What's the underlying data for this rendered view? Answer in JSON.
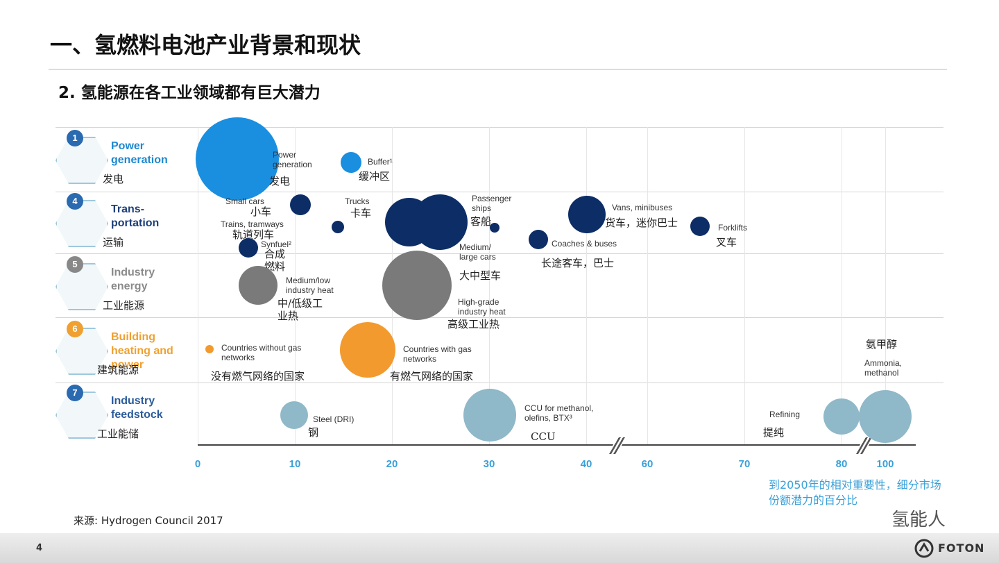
{
  "header": {
    "title": "一、氢燃料电池产业背景和现状",
    "subtitle": "2. 氢能源在各工业领域都有巨大潜力"
  },
  "footer": {
    "source": "来源: Hydrogen Council 2017",
    "page": "4",
    "watermark": "氢能人",
    "logo": "FOTON"
  },
  "chart_data": {
    "type": "bubble",
    "note": "到2050年的相对重要性，细分市场份额潜力的百分比",
    "xlim": [
      0,
      100
    ],
    "xticks": [
      0,
      10,
      20,
      30,
      40,
      60,
      70,
      80,
      100
    ],
    "grid": true,
    "series": [
      {
        "number": "1",
        "name": "Power generation",
        "name_zh": "发电",
        "color": "#1a8fe0",
        "label_color": "#1e88d0",
        "x": [
          4.1,
          15.8
        ],
        "sizes": [
          60,
          15
        ],
        "labels": [
          "Power generation",
          "Buffer¹"
        ],
        "labels_zh": [
          "发电",
          "缓冲区"
        ]
      },
      {
        "number": "4",
        "name": "Trans- portation",
        "name_zh": "运输",
        "color": "#0d2d66",
        "label_color": "#1d3e7a",
        "x": [
          10.6,
          14.4,
          5.2,
          21.8,
          30.6,
          24.9,
          35.1,
          40.2,
          65.4
        ],
        "sizes": [
          15,
          9,
          14,
          35,
          7,
          40,
          14,
          27,
          14
        ],
        "labels": [
          "Small cars",
          "Trains, tramways",
          "Synfuel²",
          "Trucks",
          "Passenger ships",
          "Medium/ large cars",
          "Coaches & buses",
          "Vans, minibuses",
          "Forklifts"
        ],
        "labels_zh": [
          "小车",
          "轨道列车",
          "合成燃料",
          "卡车",
          "客船",
          "大中型车",
          "长途客车，巴士",
          "货车，迷你巴士",
          "叉车"
        ]
      },
      {
        "number": "5",
        "name": "Industry energy",
        "name_zh": "工业能源",
        "color": "#7a7a7a",
        "label_color": "#8a8a8a",
        "x": [
          6.2,
          22.6
        ],
        "sizes": [
          28,
          50
        ],
        "labels": [
          "Medium/low industry heat",
          "High-grade industry heat"
        ],
        "labels_zh": [
          "中/低级工业热",
          "高级工业热"
        ]
      },
      {
        "number": "6",
        "name": "Building heating and power",
        "name_zh": "建筑能源",
        "color": "#f39a2e",
        "label_color": "#f0a030",
        "x": [
          1.2,
          17.5
        ],
        "sizes": [
          6,
          40
        ],
        "labels": [
          "Countries without gas networks",
          "Countries with gas networks"
        ],
        "labels_zh": [
          "没有燃气网络的国家",
          "有燃气网络的国家"
        ]
      },
      {
        "number": "7",
        "name": "Industry feedstock",
        "name_zh": "工业能储",
        "color": "#8fb8c8",
        "label_color": "#2a5a9a",
        "x": [
          9.9,
          30.1,
          80,
          100
        ],
        "sizes": [
          20,
          38,
          26,
          38
        ],
        "labels": [
          "Steel (DRI)",
          "CCU for methanol, olefins, BTX³",
          "Refining",
          "Ammonia, methanol"
        ],
        "labels_zh": [
          "钢",
          "CCU",
          "提纯",
          "氨甲醇"
        ]
      }
    ]
  }
}
